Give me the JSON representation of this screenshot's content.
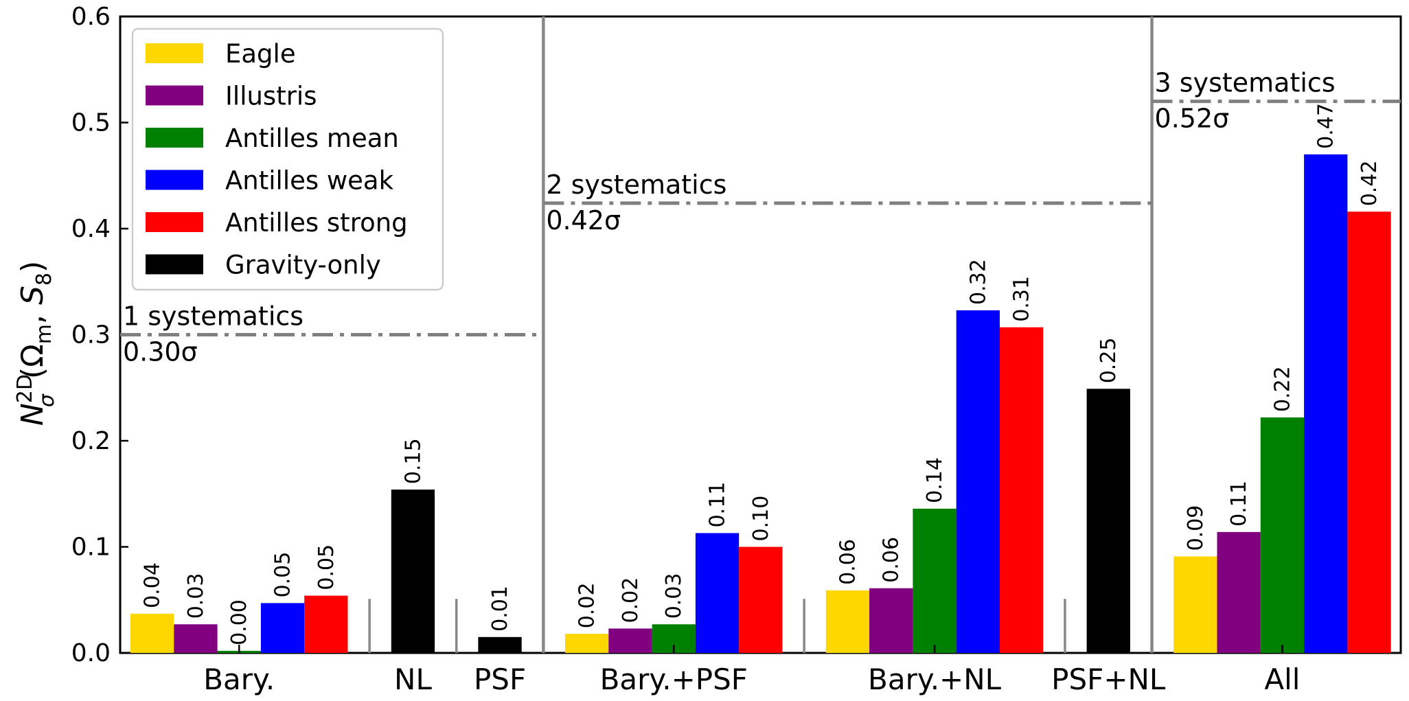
{
  "chart_data": {
    "type": "bar",
    "ylabel": "N_σ^2D(Ω_m, S_8)",
    "ylim": [
      0,
      0.6
    ],
    "yticks": [
      "0.0",
      "0.1",
      "0.2",
      "0.3",
      "0.4",
      "0.5",
      "0.6"
    ],
    "grid": false,
    "legend_position": "top-left",
    "categories": [
      "Bary.",
      "NL",
      "PSF",
      "Bary.+PSF",
      "Bary.+NL",
      "PSF+NL",
      "All"
    ],
    "series": [
      {
        "name": "Eagle",
        "color": "#FFD700",
        "values": [
          0.037,
          null,
          null,
          0.018,
          0.059,
          null,
          0.091
        ]
      },
      {
        "name": "Illustris",
        "color": "#800080",
        "values": [
          0.027,
          null,
          null,
          0.023,
          0.061,
          null,
          0.114
        ]
      },
      {
        "name": "Antilles mean",
        "color": "#008000",
        "values": [
          0.002,
          null,
          null,
          0.027,
          0.136,
          null,
          0.222
        ]
      },
      {
        "name": "Antilles weak",
        "color": "#0000FF",
        "values": [
          0.047,
          null,
          null,
          0.113,
          0.323,
          null,
          0.47
        ]
      },
      {
        "name": "Antilles strong",
        "color": "#FF0000",
        "values": [
          0.054,
          null,
          null,
          0.1,
          0.307,
          null,
          0.416
        ]
      },
      {
        "name": "Gravity-only",
        "color": "#000000",
        "values": [
          null,
          0.154,
          0.015,
          null,
          null,
          0.249,
          null
        ]
      }
    ],
    "bar_labels": {
      "Eagle": [
        "0.04",
        null,
        null,
        "0.02",
        "0.06",
        null,
        "0.09"
      ],
      "Illustris": [
        "0.03",
        null,
        null,
        "0.02",
        "0.06",
        null,
        "0.11"
      ],
      "Antilles mean": [
        "0.00",
        null,
        null,
        "0.03",
        "0.14",
        null,
        "0.22"
      ],
      "Antilles weak": [
        "0.05",
        null,
        null,
        "0.11",
        "0.32",
        null,
        "0.47"
      ],
      "Antilles strong": [
        "0.05",
        null,
        null,
        "0.10",
        "0.31",
        null,
        "0.42"
      ],
      "Gravity-only": [
        null,
        "0.15",
        "0.01",
        null,
        null,
        "0.25",
        null
      ]
    },
    "systematics_levels": [
      {
        "label": "1 systematics",
        "value_label": "0.30σ",
        "value": 0.3
      },
      {
        "label": "2 systematics",
        "value_label": "0.42σ",
        "value": 0.424
      },
      {
        "label": "3 systematics",
        "value_label": "0.52σ",
        "value": 0.52
      }
    ]
  }
}
